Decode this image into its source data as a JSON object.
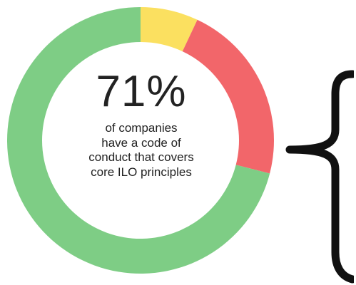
{
  "chart_data": {
    "type": "pie",
    "style": "donut",
    "slices": [
      {
        "label": "",
        "value": 7,
        "color": "#fbe060"
      },
      {
        "label": "",
        "value": 22,
        "color": "#f2666a"
      },
      {
        "label": "",
        "value": 71,
        "color": "#7ecd85"
      }
    ],
    "center_value": "71%",
    "center_caption_lines": [
      "of companies",
      "have a code of",
      "conduct that covers",
      "core ILO principles"
    ]
  },
  "colors": {
    "yellow": "#fbe060",
    "red": "#f2666a",
    "green": "#7ecd85",
    "text": "#222222"
  }
}
